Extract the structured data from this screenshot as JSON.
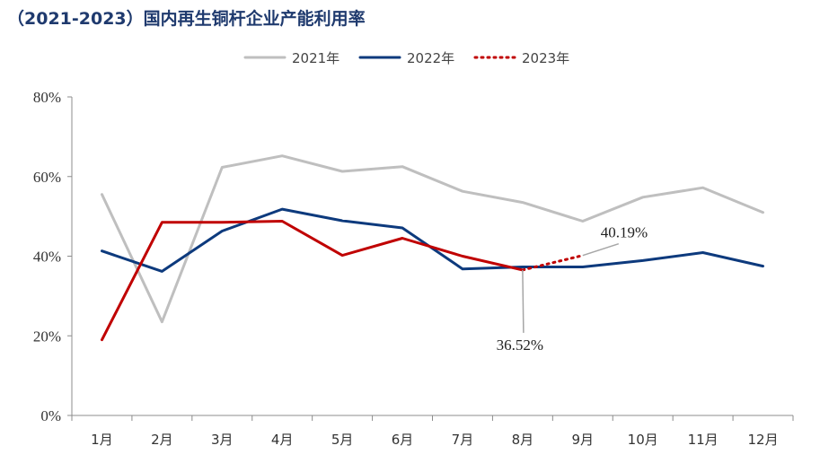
{
  "chart_data": {
    "type": "line",
    "title": "（2021-2023）国内再生铜杆企业产能利用率",
    "categories": [
      "1月",
      "2月",
      "3月",
      "4月",
      "5月",
      "6月",
      "7月",
      "8月",
      "9月",
      "10月",
      "11月",
      "12月"
    ],
    "y_tick_labels": [
      "0%",
      "20%",
      "40%",
      "60%",
      "80%"
    ],
    "y_ticks": [
      0,
      20,
      40,
      60,
      80
    ],
    "ylim": [
      0,
      80
    ],
    "grid": false,
    "legend_position": "top-center",
    "series": [
      {
        "name": "2021年",
        "color": "#bfbfbf",
        "style": "solid",
        "values": [
          55.5,
          23.5,
          62.3,
          65.2,
          61.3,
          62.5,
          56.3,
          53.5,
          48.8,
          54.8,
          57.2,
          51.0
        ]
      },
      {
        "name": "2022年",
        "color": "#0d3a7d",
        "style": "solid",
        "values": [
          41.3,
          36.2,
          46.3,
          51.8,
          48.9,
          47.1,
          36.8,
          37.3,
          37.3,
          38.9,
          40.9,
          37.5
        ]
      },
      {
        "name": "2023年",
        "color": "#c00000",
        "style": "composite",
        "values": [
          19.0,
          48.5,
          48.5,
          48.8,
          40.2,
          44.5,
          40.0,
          36.52,
          40.19,
          null,
          null,
          null
        ]
      }
    ],
    "annotations": [
      {
        "text": "40.19%",
        "category": "9月",
        "value": 40.19
      },
      {
        "text": "36.52%",
        "category": "8月",
        "value": 36.52
      }
    ]
  }
}
